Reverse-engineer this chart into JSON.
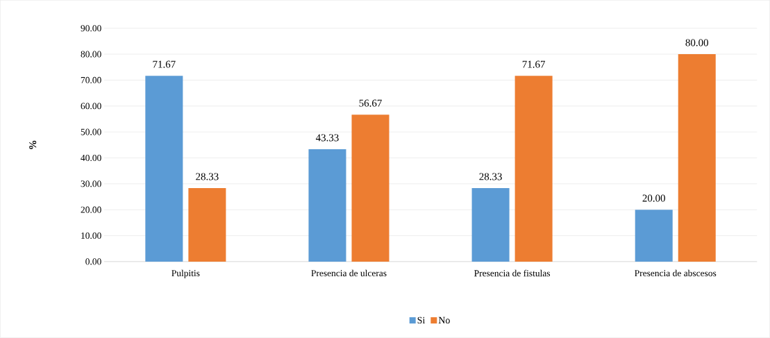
{
  "chart_data": {
    "type": "bar",
    "ylabel": "%",
    "categories": [
      "Pulpitis",
      "Presencia de ulceras",
      "Presencia de fistulas",
      "Presencia de abscesos"
    ],
    "series": [
      {
        "name": "Si",
        "color": "#5b9bd5",
        "values": [
          71.67,
          43.33,
          28.33,
          20.0
        ],
        "value_labels": [
          "71.67",
          "43.33",
          "28.33",
          "20.00"
        ]
      },
      {
        "name": "No",
        "color": "#ed7d31",
        "values": [
          28.33,
          56.67,
          71.67,
          80.0
        ],
        "value_labels": [
          "28.33",
          "56.67",
          "71.67",
          "80.00"
        ]
      }
    ],
    "ylim": [
      0,
      90
    ],
    "yticks": [
      {
        "value": 0,
        "label": "0.00"
      },
      {
        "value": 10,
        "label": "10.00"
      },
      {
        "value": 20,
        "label": "20.00"
      },
      {
        "value": 30,
        "label": "30.00"
      },
      {
        "value": 40,
        "label": "40.00"
      },
      {
        "value": 50,
        "label": "50.00"
      },
      {
        "value": 60,
        "label": "60.00"
      },
      {
        "value": 70,
        "label": "70.00"
      },
      {
        "value": 80,
        "label": "80.00"
      },
      {
        "value": 90,
        "label": "90.00"
      }
    ],
    "grid": "y",
    "legend": "bottom"
  }
}
